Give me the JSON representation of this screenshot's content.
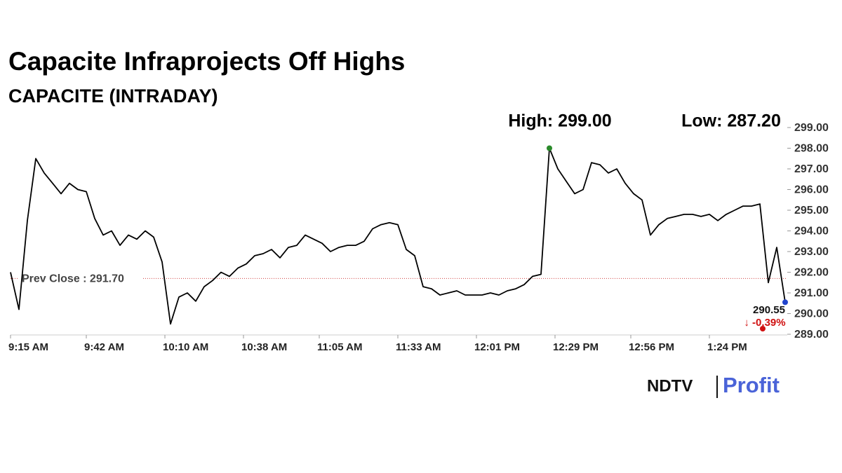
{
  "chart_data": {
    "type": "line",
    "title": "Capacite Infraprojects Off Highs",
    "subtitle": "CAPACITE (INTRADAY)",
    "color": "#000000",
    "x": [
      "9:15 AM",
      "9:18 AM",
      "9:21 AM",
      "9:24 AM",
      "9:27 AM",
      "9:30 AM",
      "9:33 AM",
      "9:36 AM",
      "9:39 AM",
      "9:42 AM",
      "9:45 AM",
      "9:48 AM",
      "9:51 AM",
      "9:54 AM",
      "9:57 AM",
      "10:00 AM",
      "10:03 AM",
      "10:06 AM",
      "10:09 AM",
      "10:12 AM",
      "10:15 AM",
      "10:18 AM",
      "10:21 AM",
      "10:24 AM",
      "10:27 AM",
      "10:30 AM",
      "10:33 AM",
      "10:36 AM",
      "10:39 AM",
      "10:42 AM",
      "10:45 AM",
      "10:48 AM",
      "10:51 AM",
      "10:54 AM",
      "10:57 AM",
      "11:00 AM",
      "11:03 AM",
      "11:06 AM",
      "11:09 AM",
      "11:12 AM",
      "11:15 AM",
      "11:18 AM",
      "11:21 AM",
      "11:24 AM",
      "11:27 AM",
      "11:30 AM",
      "11:33 AM",
      "11:36 AM",
      "11:39 AM",
      "11:42 AM",
      "11:45 AM",
      "11:48 AM",
      "11:51 AM",
      "11:54 AM",
      "11:57 AM",
      "12:00 PM",
      "12:03 PM",
      "12:06 PM",
      "12:09 PM",
      "12:12 PM",
      "12:15 PM",
      "12:18 PM",
      "12:21 PM",
      "12:24 PM",
      "12:27 PM",
      "12:30 PM",
      "12:33 PM",
      "12:36 PM",
      "12:39 PM",
      "12:42 PM",
      "12:45 PM",
      "12:48 PM",
      "12:51 PM",
      "12:54 PM",
      "12:57 PM",
      "1:00 PM",
      "1:03 PM",
      "1:06 PM",
      "1:09 PM",
      "1:12 PM",
      "1:15 PM",
      "1:18 PM",
      "1:21 PM",
      "1:24 PM",
      "1:27 PM",
      "1:30 PM",
      "1:33 PM",
      "1:36 PM",
      "1:39 PM",
      "1:42 PM",
      "1:45 PM",
      "1:48 PM",
      "1:51 PM"
    ],
    "values": [
      292.0,
      290.2,
      294.5,
      297.5,
      296.8,
      296.3,
      295.8,
      296.3,
      296.0,
      295.9,
      294.6,
      293.8,
      294.0,
      293.3,
      293.8,
      293.6,
      294.0,
      293.7,
      292.5,
      289.5,
      290.8,
      291.0,
      290.6,
      291.3,
      291.6,
      292.0,
      291.8,
      292.2,
      292.4,
      292.8,
      292.9,
      293.1,
      292.7,
      293.2,
      293.3,
      293.8,
      293.6,
      293.4,
      293.0,
      293.2,
      293.3,
      293.3,
      293.5,
      294.1,
      294.3,
      294.4,
      294.3,
      293.1,
      292.8,
      291.3,
      291.2,
      290.9,
      291.0,
      291.1,
      290.9,
      290.9,
      290.9,
      291.0,
      290.9,
      291.1,
      291.2,
      291.4,
      291.8,
      291.9,
      298.0,
      297.0,
      296.4,
      295.8,
      296.0,
      297.3,
      297.2,
      296.8,
      297.0,
      296.3,
      295.8,
      295.5,
      293.8,
      294.3,
      294.6,
      294.7,
      294.8,
      294.8,
      294.7,
      294.8,
      294.5,
      294.8,
      295.0,
      295.2,
      295.2,
      295.3,
      291.5,
      293.2,
      290.55
    ],
    "xticks": [
      "9:15 AM",
      "9:42 AM",
      "10:10 AM",
      "10:38 AM",
      "11:05 AM",
      "11:33 AM",
      "12:01 PM",
      "12:29 PM",
      "12:56 PM",
      "1:24 PM"
    ],
    "ylim": [
      289,
      299
    ],
    "yticks": [
      {
        "value": 289,
        "label": "289.00"
      },
      {
        "value": 290,
        "label": "290.00"
      },
      {
        "value": 291,
        "label": "291.00"
      },
      {
        "value": 292,
        "label": "292.00"
      },
      {
        "value": 293,
        "label": "293.00"
      },
      {
        "value": 294,
        "label": "294.00"
      },
      {
        "value": 295,
        "label": "295.00"
      },
      {
        "value": 296,
        "label": "296.00"
      },
      {
        "value": 297,
        "label": "297.00"
      },
      {
        "value": 298,
        "label": "298.00"
      },
      {
        "value": 299,
        "label": "299.00"
      }
    ],
    "prev_close": {
      "value": 291.7,
      "label": "Prev Close : 291.70"
    },
    "annotations": {
      "high": "High: 299.00",
      "low": "Low: 287.20",
      "last": "290.55",
      "change": "↓ -0.39%"
    }
  },
  "branding": {
    "left": "NDTV",
    "right": "Profit"
  }
}
